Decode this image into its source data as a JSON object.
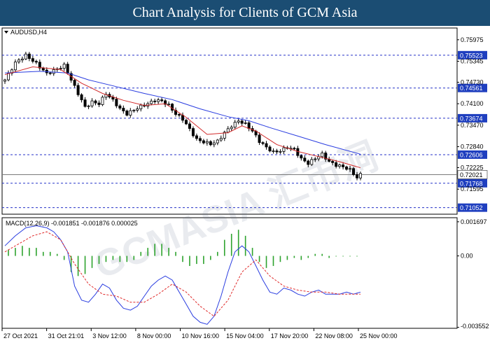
{
  "header": {
    "title": "Chart Analysis for Clients of GCM Asia"
  },
  "colors": {
    "banner": "#1b4d73",
    "bull": "#000000",
    "bear": "#000000",
    "ma_fast": "#d22b2b",
    "ma_slow": "#2a3de0",
    "level_line": "#2432c8",
    "current_price": "#7a7a7a",
    "histogram": "#2ea32e",
    "macd_line": "#2a3de0",
    "signal_line": "#e02a2a",
    "label_fill": "#1f3fbf"
  },
  "chart_data": [
    {
      "type": "candlestick",
      "symbol_label": "AUDUSD,H4",
      "y_ticks": [
        "0.75975",
        "0.75345",
        "0.74730",
        "0.74100",
        "0.73470",
        "0.72840",
        "0.72225",
        "0.71595"
      ],
      "ylim": [
        0.7086,
        0.7632
      ],
      "levels": [
        0.75523,
        0.74561,
        0.73674,
        0.72606,
        0.71768,
        0.71052
      ],
      "level_labels": [
        "0.75523",
        "0.74561",
        "0.73674",
        "0.72606",
        "0.71768",
        "0.71052"
      ],
      "current_price": 0.72021,
      "current_label": "0.72021",
      "x_labels": [
        "27 Oct 2021",
        "31 Oct 21:01",
        "3 Nov 12:00",
        "8 Nov 00:00",
        "10 Nov 16:00",
        "15 Nov 04:00",
        "17 Nov 20:00",
        "22 Nov 08:00",
        "25 Nov 00:00"
      ],
      "close_path": [
        [
          0,
          0.748
        ],
        [
          3,
          0.753
        ],
        [
          6,
          0.7552
        ],
        [
          9,
          0.7528
        ],
        [
          12,
          0.7498
        ],
        [
          15,
          0.7512
        ],
        [
          17,
          0.7522
        ],
        [
          19,
          0.748
        ],
        [
          21,
          0.744
        ],
        [
          23,
          0.74
        ],
        [
          25,
          0.7415
        ],
        [
          27,
          0.741
        ],
        [
          29,
          0.744
        ],
        [
          31,
          0.742
        ],
        [
          33,
          0.7395
        ],
        [
          35,
          0.738
        ],
        [
          37,
          0.7392
        ],
        [
          39,
          0.7402
        ],
        [
          41,
          0.741
        ],
        [
          43,
          0.742
        ],
        [
          45,
          0.7418
        ],
        [
          47,
          0.7405
        ],
        [
          49,
          0.738
        ],
        [
          51,
          0.7365
        ],
        [
          53,
          0.7335
        ],
        [
          55,
          0.7305
        ],
        [
          57,
          0.7298
        ],
        [
          59,
          0.7292
        ],
        [
          61,
          0.73
        ],
        [
          63,
          0.7325
        ],
        [
          65,
          0.7345
        ],
        [
          67,
          0.736
        ],
        [
          69,
          0.735
        ],
        [
          71,
          0.733
        ],
        [
          73,
          0.73
        ],
        [
          75,
          0.7282
        ],
        [
          77,
          0.7268
        ],
        [
          79,
          0.7272
        ],
        [
          81,
          0.7282
        ],
        [
          83,
          0.7276
        ],
        [
          85,
          0.7248
        ],
        [
          87,
          0.7235
        ],
        [
          89,
          0.725
        ],
        [
          91,
          0.7262
        ],
        [
          93,
          0.724
        ],
        [
          95,
          0.723
        ],
        [
          97,
          0.7225
        ],
        [
          99,
          0.7216
        ],
        [
          101,
          0.7193
        ],
        [
          102,
          0.7202
        ]
      ],
      "ma_fast": [
        [
          0,
          0.7495
        ],
        [
          8,
          0.7518
        ],
        [
          16,
          0.751
        ],
        [
          22,
          0.747
        ],
        [
          28,
          0.744
        ],
        [
          34,
          0.742
        ],
        [
          40,
          0.7405
        ],
        [
          46,
          0.741
        ],
        [
          52,
          0.737
        ],
        [
          58,
          0.732
        ],
        [
          64,
          0.7325
        ],
        [
          68,
          0.7345
        ],
        [
          72,
          0.733
        ],
        [
          78,
          0.729
        ],
        [
          84,
          0.727
        ],
        [
          90,
          0.7255
        ],
        [
          96,
          0.724
        ],
        [
          102,
          0.7222
        ]
      ],
      "ma_slow": [
        [
          0,
          0.75
        ],
        [
          10,
          0.7505
        ],
        [
          18,
          0.75
        ],
        [
          24,
          0.748
        ],
        [
          32,
          0.746
        ],
        [
          40,
          0.744
        ],
        [
          48,
          0.7422
        ],
        [
          56,
          0.7395
        ],
        [
          64,
          0.7372
        ],
        [
          70,
          0.736
        ],
        [
          76,
          0.734
        ],
        [
          84,
          0.7315
        ],
        [
          92,
          0.729
        ],
        [
          102,
          0.7262
        ]
      ]
    },
    {
      "type": "macd",
      "label": "MACD(12,26,9) -0.001851 -0.001876 0.000025",
      "y_ticks": [
        "0.001697",
        "0.00",
        "-0.003552"
      ],
      "ylim": [
        -0.0036,
        0.0019
      ],
      "macd_line": [
        [
          0,
          0.0005
        ],
        [
          3,
          0.001
        ],
        [
          6,
          0.0014
        ],
        [
          9,
          0.0015
        ],
        [
          12,
          0.0014
        ],
        [
          14,
          0.0012
        ],
        [
          16,
          0.0008
        ],
        [
          18,
          0.0002
        ],
        [
          20,
          -0.0015
        ],
        [
          22,
          -0.0022
        ],
        [
          24,
          -0.0023
        ],
        [
          26,
          -0.0019
        ],
        [
          28,
          -0.0014
        ],
        [
          30,
          -0.0016
        ],
        [
          32,
          -0.0022
        ],
        [
          34,
          -0.0026
        ],
        [
          36,
          -0.0027
        ],
        [
          38,
          -0.0025
        ],
        [
          40,
          -0.002
        ],
        [
          42,
          -0.0015
        ],
        [
          44,
          -0.0012
        ],
        [
          46,
          -0.001
        ],
        [
          48,
          -0.0012
        ],
        [
          50,
          -0.0018
        ],
        [
          52,
          -0.0024
        ],
        [
          54,
          -0.003
        ],
        [
          56,
          -0.0033
        ],
        [
          58,
          -0.0034
        ],
        [
          60,
          -0.003
        ],
        [
          62,
          -0.002
        ],
        [
          64,
          -0.0008
        ],
        [
          66,
          0.0002
        ],
        [
          68,
          0.0005
        ],
        [
          70,
          0.0002
        ],
        [
          72,
          -0.0005
        ],
        [
          74,
          -0.0012
        ],
        [
          76,
          -0.0018
        ],
        [
          78,
          -0.0019
        ],
        [
          80,
          -0.0016
        ],
        [
          82,
          -0.0017
        ],
        [
          84,
          -0.0019
        ],
        [
          86,
          -0.002
        ],
        [
          88,
          -0.0018
        ],
        [
          90,
          -0.0017
        ],
        [
          92,
          -0.0019
        ],
        [
          94,
          -0.0019
        ],
        [
          96,
          -0.0019
        ],
        [
          98,
          -0.0018
        ],
        [
          100,
          -0.0019
        ],
        [
          102,
          -0.0018
        ]
      ],
      "signal_line": [
        [
          0,
          0.0002
        ],
        [
          4,
          0.0006
        ],
        [
          8,
          0.001
        ],
        [
          12,
          0.0012
        ],
        [
          16,
          0.0008
        ],
        [
          20,
          -0.0004
        ],
        [
          24,
          -0.0014
        ],
        [
          28,
          -0.0019
        ],
        [
          32,
          -0.002
        ],
        [
          36,
          -0.0023
        ],
        [
          40,
          -0.0023
        ],
        [
          44,
          -0.0019
        ],
        [
          48,
          -0.0014
        ],
        [
          52,
          -0.0018
        ],
        [
          56,
          -0.0025
        ],
        [
          60,
          -0.003
        ],
        [
          64,
          -0.0022
        ],
        [
          68,
          -0.0008
        ],
        [
          72,
          -0.0002
        ],
        [
          76,
          -0.001
        ],
        [
          80,
          -0.0015
        ],
        [
          84,
          -0.0017
        ],
        [
          88,
          -0.0018
        ],
        [
          92,
          -0.0018
        ],
        [
          96,
          -0.0019
        ],
        [
          102,
          -0.0019
        ]
      ],
      "histogram": [
        [
          1,
          0.0003
        ],
        [
          3,
          0.0004
        ],
        [
          5,
          0.0005
        ],
        [
          7,
          0.0004
        ],
        [
          9,
          0.0004
        ],
        [
          11,
          0.0002
        ],
        [
          13,
          0.0002
        ],
        [
          15,
          0.0001
        ],
        [
          17,
          -0.0002
        ],
        [
          19,
          -0.0008
        ],
        [
          21,
          -0.001
        ],
        [
          23,
          -0.0009
        ],
        [
          25,
          -0.0006
        ],
        [
          27,
          -0.0004
        ],
        [
          29,
          -0.0003
        ],
        [
          31,
          -0.0002
        ],
        [
          33,
          -0.0003
        ],
        [
          35,
          -0.0003
        ],
        [
          37,
          -0.0002
        ],
        [
          39,
          0.0002
        ],
        [
          41,
          0.0004
        ],
        [
          43,
          0.0006
        ],
        [
          45,
          0.0006
        ],
        [
          47,
          0.0004
        ],
        [
          49,
          0.0002
        ],
        [
          51,
          -0.0003
        ],
        [
          53,
          -0.0005
        ],
        [
          55,
          -0.0004
        ],
        [
          57,
          -0.0004
        ],
        [
          59,
          -0.0002
        ],
        [
          61,
          0.0002
        ],
        [
          63,
          0.0008
        ],
        [
          65,
          0.0011
        ],
        [
          67,
          0.0013
        ],
        [
          69,
          0.001
        ],
        [
          71,
          0.0004
        ],
        [
          73,
          -0.0003
        ],
        [
          75,
          -0.0006
        ],
        [
          77,
          -0.0005
        ],
        [
          79,
          -0.0003
        ],
        [
          81,
          -0.0002
        ],
        [
          83,
          -0.0001
        ],
        [
          85,
          -0.0002
        ],
        [
          87,
          -0.0001
        ],
        [
          89,
          0.0001
        ],
        [
          91,
          0.0001
        ],
        [
          93,
          -0.0001
        ],
        [
          95,
          0.0
        ],
        [
          97,
          0.0
        ],
        [
          99,
          0.0
        ],
        [
          101,
          0.0
        ]
      ]
    }
  ]
}
